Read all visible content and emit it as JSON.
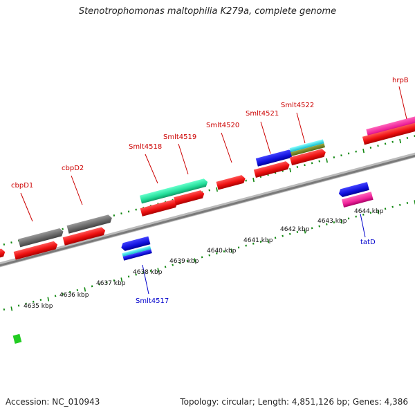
{
  "title": "Stenotrophomonas maltophilia K279a, complete genome",
  "footer": {
    "accession": "Accession: NC_010943",
    "summary": "Topology: circular; Length: 4,851,126 bp; Genes: 4,386"
  },
  "colors": {
    "forward_label": "#cc0000",
    "reverse_label": "#0000cc",
    "cds": "#ee1111",
    "tick": "#118811",
    "backbone": "#8a8a8a"
  },
  "scale_labels": [
    "4635 kbp",
    "4636 kbp",
    "4637 kbp",
    "4638 kbp",
    "4639 kbp",
    "4640 kbp",
    "4641 kbp",
    "4642 kbp",
    "4643 kbp",
    "4644 kbp"
  ],
  "gene_labels_forward": [
    "cbpD1",
    "cbpD2",
    "Smlt4518",
    "Smlt4519",
    "Smlt4520",
    "Smlt4521",
    "Smlt4522",
    "hrpB"
  ],
  "gene_labels_reverse": [
    "Smlt4517",
    "tatD"
  ]
}
